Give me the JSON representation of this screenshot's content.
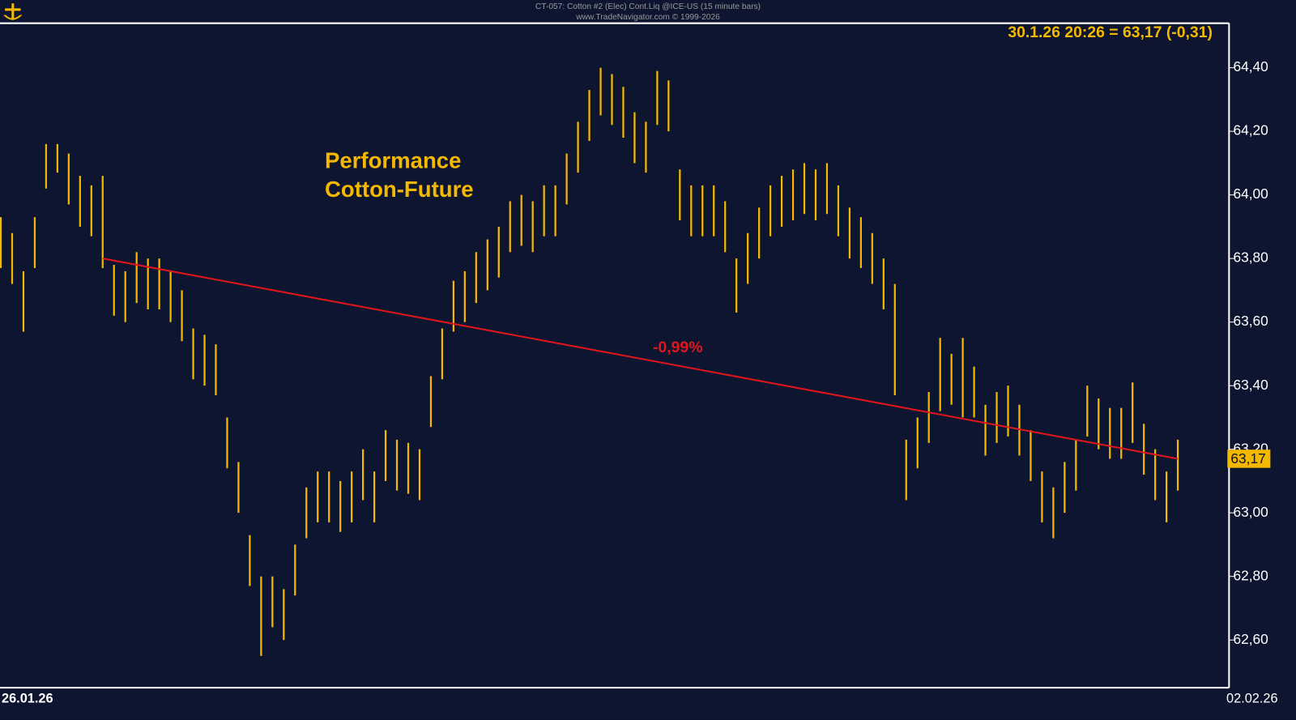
{
  "chart_data": {
    "type": "ohlc",
    "title": "CT-057:  Cotton #2 (Elec) Cont.Liq @ICE-US  (15 minute bars)",
    "subtitle": "www.TradeNavigator.com © 1999-2026",
    "quote": "30.1.26 20:26 = 63,17 (-0,31)",
    "annotation": [
      "Performance",
      "Cotton-Future"
    ],
    "color": "#f5b800",
    "high": [
      63.93,
      63.88,
      63.76,
      63.93,
      64.16,
      64.16,
      64.13,
      64.06,
      64.03,
      64.06,
      63.78,
      63.76,
      63.82,
      63.8,
      63.8,
      63.76,
      63.7,
      63.58,
      63.56,
      63.53,
      63.3,
      63.16,
      62.93,
      62.8,
      62.8,
      62.76,
      62.9,
      63.08,
      63.13,
      63.13,
      63.1,
      63.13,
      63.2,
      63.13,
      63.26,
      63.23,
      63.22,
      63.2,
      63.43,
      63.58,
      63.73,
      63.76,
      63.82,
      63.86,
      63.9,
      63.98,
      64.0,
      63.98,
      64.03,
      64.03,
      64.13,
      64.23,
      64.33,
      64.4,
      64.38,
      64.34,
      64.26,
      64.23,
      64.39,
      64.36,
      64.08,
      64.03,
      64.03,
      64.03,
      63.98,
      63.8,
      63.88,
      63.96,
      64.03,
      64.06,
      64.08,
      64.1,
      64.08,
      64.1,
      64.03,
      63.96,
      63.93,
      63.88,
      63.8,
      63.72,
      63.23,
      63.3,
      63.38,
      63.55,
      63.5,
      63.55,
      63.46,
      63.34,
      63.38,
      63.4,
      63.34,
      63.26,
      63.13,
      63.08,
      63.16,
      63.23,
      63.4,
      63.36,
      63.33,
      63.33,
      63.41,
      63.28,
      63.2,
      63.13,
      63.23
    ],
    "low": [
      63.77,
      63.72,
      63.57,
      63.77,
      64.02,
      64.07,
      63.97,
      63.9,
      63.87,
      63.77,
      63.62,
      63.6,
      63.66,
      63.64,
      63.64,
      63.6,
      63.54,
      63.42,
      63.4,
      63.37,
      63.14,
      63.0,
      62.77,
      62.55,
      62.64,
      62.6,
      62.74,
      62.92,
      62.97,
      62.97,
      62.94,
      62.97,
      63.04,
      62.97,
      63.1,
      63.07,
      63.06,
      63.04,
      63.27,
      63.42,
      63.57,
      63.6,
      63.66,
      63.7,
      63.74,
      63.82,
      63.84,
      63.82,
      63.87,
      63.87,
      63.97,
      64.07,
      64.17,
      64.25,
      64.22,
      64.18,
      64.1,
      64.07,
      64.22,
      64.2,
      63.92,
      63.87,
      63.87,
      63.87,
      63.82,
      63.63,
      63.72,
      63.8,
      63.87,
      63.9,
      63.92,
      63.94,
      63.92,
      63.94,
      63.87,
      63.8,
      63.77,
      63.72,
      63.64,
      63.37,
      63.04,
      63.14,
      63.22,
      63.32,
      63.34,
      63.3,
      63.3,
      63.18,
      63.22,
      63.24,
      63.18,
      63.1,
      62.97,
      62.92,
      63.0,
      63.07,
      63.24,
      63.2,
      63.17,
      63.17,
      63.22,
      63.12,
      63.04,
      62.97,
      63.07
    ],
    "x_labels": [
      "26.01.26",
      "02.02.26"
    ],
    "ylim": [
      62.45,
      64.54
    ],
    "yticks": [
      {
        "value": 62.6,
        "label": "62,60"
      },
      {
        "value": 62.8,
        "label": "62,80"
      },
      {
        "value": 63.0,
        "label": "63,00"
      },
      {
        "value": 63.2,
        "label": "63,20"
      },
      {
        "value": 63.4,
        "label": "63,40"
      },
      {
        "value": 63.6,
        "label": "63,60"
      },
      {
        "value": 63.8,
        "label": "63,80"
      },
      {
        "value": 64.0,
        "label": "64,00"
      },
      {
        "value": 64.2,
        "label": "64,20"
      },
      {
        "value": 64.4,
        "label": "64,40"
      }
    ],
    "trend": {
      "label": "-0,99%",
      "start_value": 63.8,
      "end_value": 63.17,
      "color": "#e0161b"
    },
    "last_price": {
      "value": 63.17,
      "label": "63,17"
    }
  }
}
